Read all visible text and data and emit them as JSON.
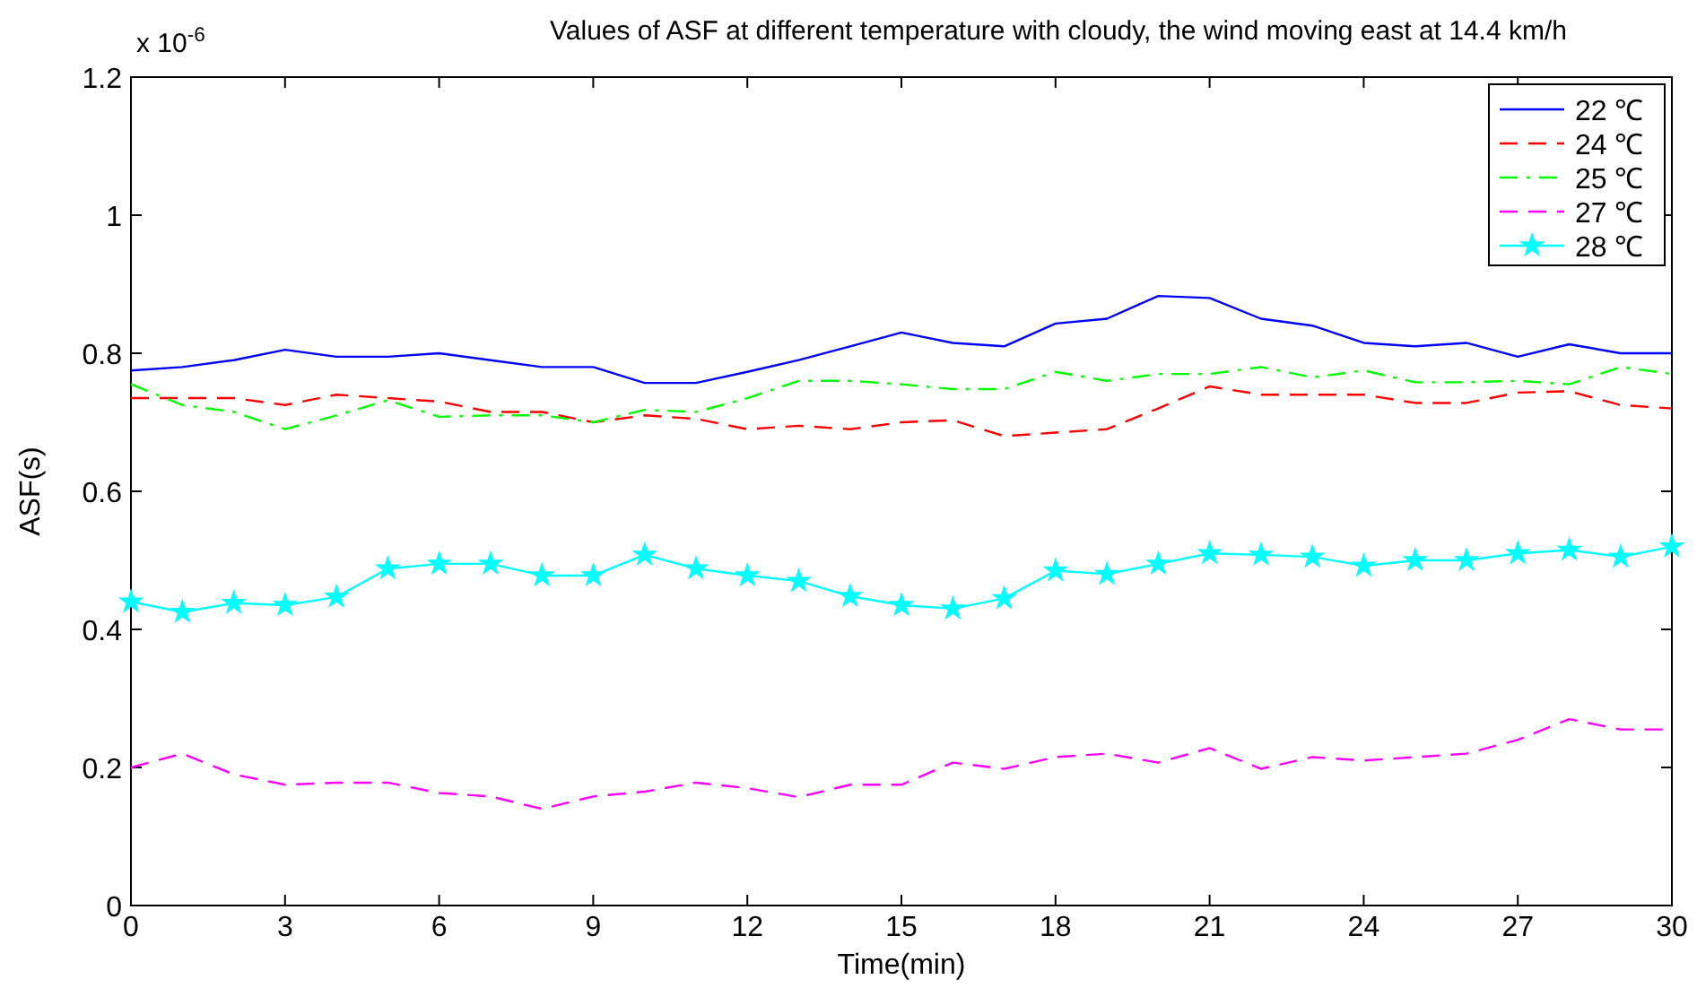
{
  "chart_data": {
    "type": "line",
    "title": "Values of ASF at different temperature with cloudy, the wind moving east at 14.4 km/h",
    "xlabel": "Time(min)",
    "ylabel": "ASF(s)",
    "annotations": [
      "x 10$^{-6}$"
    ],
    "x": [
      0,
      1,
      2,
      3,
      4,
      5,
      6,
      7,
      8,
      9,
      10,
      11,
      12,
      13,
      14,
      15,
      16,
      17,
      18,
      19,
      20,
      21,
      22,
      23,
      24,
      25,
      26,
      27,
      28,
      29,
      30
    ],
    "xlim": [
      0,
      30
    ],
    "xticks": [
      0,
      3,
      6,
      9,
      12,
      15,
      18,
      21,
      24,
      27,
      30
    ],
    "ylim": [
      0,
      1.2
    ],
    "yticks": [
      0,
      0.2,
      0.4,
      0.6,
      0.8,
      1,
      1.2
    ],
    "grid": false,
    "legend": "top right",
    "series": [
      {
        "name": "22 ℃",
        "color": "#0000ff",
        "line_style": "solid",
        "marker": "none",
        "values": [
          0.775,
          0.78,
          0.79,
          0.805,
          0.795,
          0.795,
          0.8,
          0.79,
          0.78,
          0.78,
          0.757,
          0.757,
          0.773,
          0.79,
          0.81,
          0.83,
          0.815,
          0.81,
          0.843,
          0.85,
          0.883,
          0.88,
          0.85,
          0.84,
          0.815,
          0.81,
          0.815,
          0.795,
          0.813,
          0.8,
          0.8
        ]
      },
      {
        "name": "24 ℃",
        "color": "#ff0000",
        "line_style": "dashed",
        "marker": "none",
        "values": [
          0.735,
          0.735,
          0.735,
          0.725,
          0.74,
          0.735,
          0.73,
          0.715,
          0.715,
          0.7,
          0.71,
          0.705,
          0.69,
          0.695,
          0.69,
          0.7,
          0.703,
          0.68,
          0.685,
          0.69,
          0.72,
          0.752,
          0.74,
          0.74,
          0.74,
          0.728,
          0.728,
          0.743,
          0.745,
          0.725,
          0.72
        ]
      },
      {
        "name": "25 ℃",
        "color": "#00ff00",
        "line_style": "dashdot",
        "marker": "none",
        "values": [
          0.755,
          0.725,
          0.715,
          0.69,
          0.71,
          0.732,
          0.708,
          0.71,
          0.71,
          0.7,
          0.718,
          0.715,
          0.735,
          0.76,
          0.76,
          0.755,
          0.748,
          0.748,
          0.773,
          0.76,
          0.77,
          0.77,
          0.78,
          0.765,
          0.775,
          0.758,
          0.758,
          0.76,
          0.755,
          0.78,
          0.77
        ]
      },
      {
        "name": "27 ℃",
        "color": "#ff00ff",
        "line_style": "dashed",
        "marker": "none",
        "values": [
          0.2,
          0.22,
          0.19,
          0.175,
          0.178,
          0.178,
          0.163,
          0.158,
          0.14,
          0.158,
          0.165,
          0.178,
          0.17,
          0.157,
          0.175,
          0.175,
          0.207,
          0.198,
          0.215,
          0.22,
          0.207,
          0.228,
          0.198,
          0.215,
          0.21,
          0.215,
          0.22,
          0.24,
          0.27,
          0.255,
          0.255
        ]
      },
      {
        "name": "28 ℃",
        "color": "#00ffff",
        "line_style": "solid",
        "marker": "star",
        "values": [
          0.44,
          0.425,
          0.438,
          0.435,
          0.447,
          0.488,
          0.495,
          0.495,
          0.478,
          0.478,
          0.508,
          0.488,
          0.478,
          0.47,
          0.448,
          0.435,
          0.43,
          0.445,
          0.485,
          0.48,
          0.495,
          0.51,
          0.508,
          0.505,
          0.492,
          0.5,
          0.5,
          0.51,
          0.515,
          0.505,
          0.52
        ]
      }
    ]
  }
}
